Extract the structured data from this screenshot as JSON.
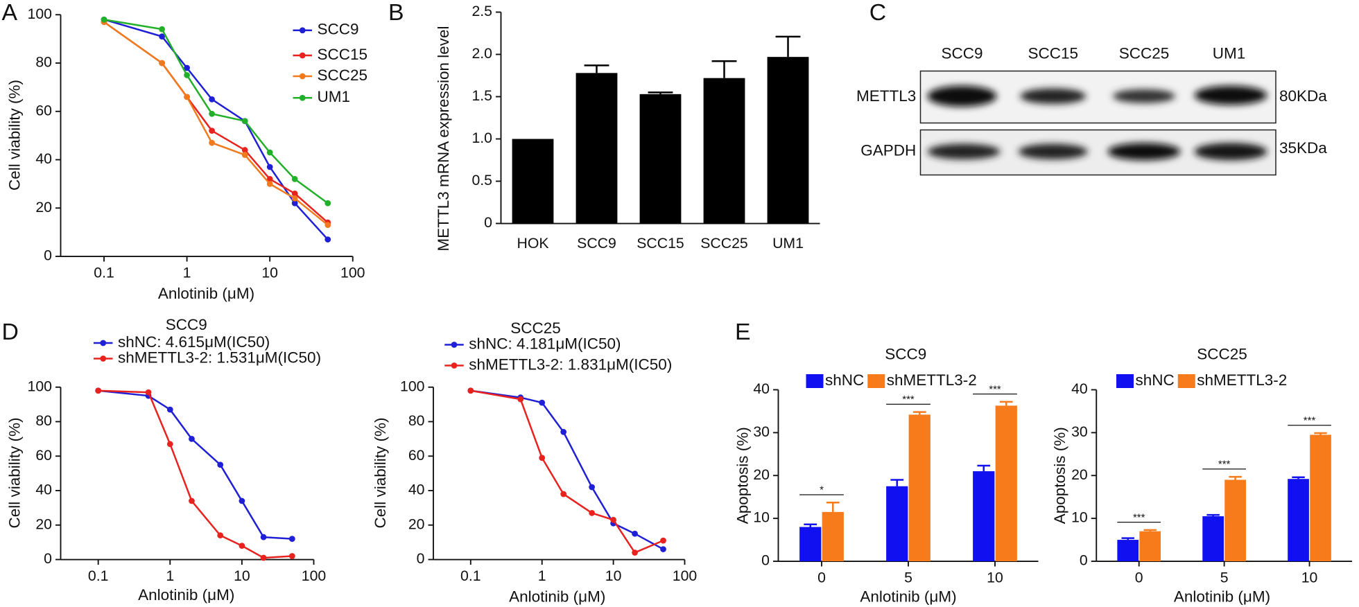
{
  "chart_data": [
    {
      "type": "line",
      "panel_label": "A",
      "xscale": "log",
      "xlim": [
        0.03,
        100
      ],
      "ylim": [
        0,
        100
      ],
      "xticks": [
        0.1,
        1,
        10,
        100
      ],
      "yticks": [
        0,
        20,
        40,
        60,
        80,
        100
      ],
      "x_label": "Anlotinib (μM)",
      "y_label": "Cell viability (%)",
      "x": [
        0.1,
        0.5,
        1,
        2,
        5,
        10,
        20,
        50
      ],
      "series": [
        {
          "name": "SCC9",
          "color": "#1f1fd6",
          "values": [
            98,
            91,
            78,
            65,
            56,
            37,
            22,
            7
          ]
        },
        {
          "name": "SCC15",
          "color": "#e8231f",
          "values": [
            97,
            80,
            66,
            52,
            44,
            32,
            26,
            14
          ]
        },
        {
          "name": "SCC25",
          "color": "#f07a1d",
          "values": [
            97,
            80,
            66,
            47,
            42,
            30,
            24,
            13
          ]
        },
        {
          "name": "UM1",
          "color": "#22b02a",
          "values": [
            98,
            94,
            75,
            59,
            56,
            43,
            32,
            22
          ]
        }
      ]
    },
    {
      "type": "bar",
      "panel_label": "B",
      "ylim": [
        0,
        2.5
      ],
      "yticks": [
        0,
        0.5,
        {
          "value": 1,
          "label": "1.0"
        },
        1.5,
        {
          "value": 2,
          "label": "2.0"
        },
        2.5
      ],
      "y_label": "METTL3 mRNA expression level",
      "categories": [
        "HOK",
        "SCC9",
        "SCC15",
        "SCC25",
        "UM1"
      ],
      "series": [
        {
          "color": "#000000",
          "values": [
            1,
            1.78,
            1.53,
            1.72,
            1.97
          ],
          "errors": [
            0,
            0.09,
            0.02,
            0.2,
            0.24
          ]
        }
      ]
    },
    {
      "type": "line",
      "panel_label": "D",
      "title": "SCC9",
      "xscale": "log",
      "xlim": [
        0.03,
        100
      ],
      "ylim": [
        0,
        100
      ],
      "xticks": [
        0.1,
        1,
        10,
        100
      ],
      "yticks": [
        0,
        20,
        40,
        60,
        80,
        100
      ],
      "x_label": "Anlotinib (μM)",
      "y_label": "Cell viability (%)",
      "x": [
        0.1,
        0.5,
        1,
        2,
        5,
        10,
        20,
        50
      ],
      "series": [
        {
          "name": "shNC: 4.615μM(IC50)",
          "color": "#1f1fd6",
          "values": [
            98,
            95,
            87,
            70,
            55,
            34,
            13,
            12
          ]
        },
        {
          "name": "shMETTL3-2: 1.531μM(IC50)",
          "color": "#e8231f",
          "values": [
            98,
            97,
            67,
            34,
            14,
            8,
            1,
            2
          ]
        }
      ]
    },
    {
      "type": "line",
      "title": "SCC25",
      "xscale": "log",
      "xlim": [
        0.03,
        100
      ],
      "ylim": [
        0,
        100
      ],
      "xticks": [
        0.1,
        1,
        10,
        100
      ],
      "yticks": [
        0,
        20,
        40,
        60,
        80,
        100
      ],
      "x_label": "Anlotinib (μM)",
      "y_label": "Cell viability (%)",
      "x": [
        0.1,
        0.5,
        1,
        2,
        5,
        10,
        20,
        50
      ],
      "series": [
        {
          "name": "shNC: 4.181μM(IC50)",
          "color": "#1f1fd6",
          "values": [
            98,
            94,
            91,
            74,
            42,
            21,
            15,
            6
          ]
        },
        {
          "name": "shMETTL3-2: 1.831μM(IC50)",
          "color": "#e8231f",
          "values": [
            98,
            93,
            59,
            38,
            27,
            23,
            4,
            11
          ]
        }
      ]
    },
    {
      "type": "bar",
      "panel_label": "E",
      "title": "SCC9",
      "ylim": [
        0,
        40
      ],
      "yticks": [
        0,
        10,
        20,
        30,
        40
      ],
      "x_label": "Anlotinib (μM)",
      "y_label": "Apoptosis (%)",
      "categories": [
        "0",
        "5",
        "10"
      ],
      "annotations": [
        "*",
        "***",
        "***"
      ],
      "series": [
        {
          "name": "shNC",
          "color": "#1010f0",
          "values": [
            8,
            17.5,
            21
          ],
          "errors": [
            0.6,
            1.5,
            1.3
          ]
        },
        {
          "name": "shMETTL3-2",
          "color": "#f77b1a",
          "values": [
            11.5,
            34.2,
            36.3
          ],
          "errors": [
            2.2,
            0.6,
            0.9
          ]
        }
      ]
    },
    {
      "type": "bar",
      "title": "SCC25",
      "ylim": [
        0,
        40
      ],
      "yticks": [
        0,
        10,
        20,
        30,
        40
      ],
      "x_label": "Anlotinib (μM)",
      "y_label": "Apoptosis (%)",
      "categories": [
        "0",
        "5",
        "10"
      ],
      "annotations": [
        "***",
        "***",
        "***"
      ],
      "series": [
        {
          "name": "shNC",
          "color": "#1010f0",
          "values": [
            5,
            10.5,
            19.2
          ],
          "errors": [
            0.4,
            0.3,
            0.4
          ]
        },
        {
          "name": "shMETTL3-2",
          "color": "#f77b1a",
          "values": [
            7,
            19,
            29.5
          ],
          "errors": [
            0.3,
            0.7,
            0.4
          ]
        }
      ]
    }
  ],
  "blot": {
    "panel_label": "C",
    "lanes": [
      "SCC9",
      "SCC15",
      "SCC25",
      "UM1"
    ],
    "rows": [
      {
        "name": "METTL3",
        "size": "80KDa"
      },
      {
        "name": "GAPDH",
        "size": "35KDa"
      }
    ]
  }
}
